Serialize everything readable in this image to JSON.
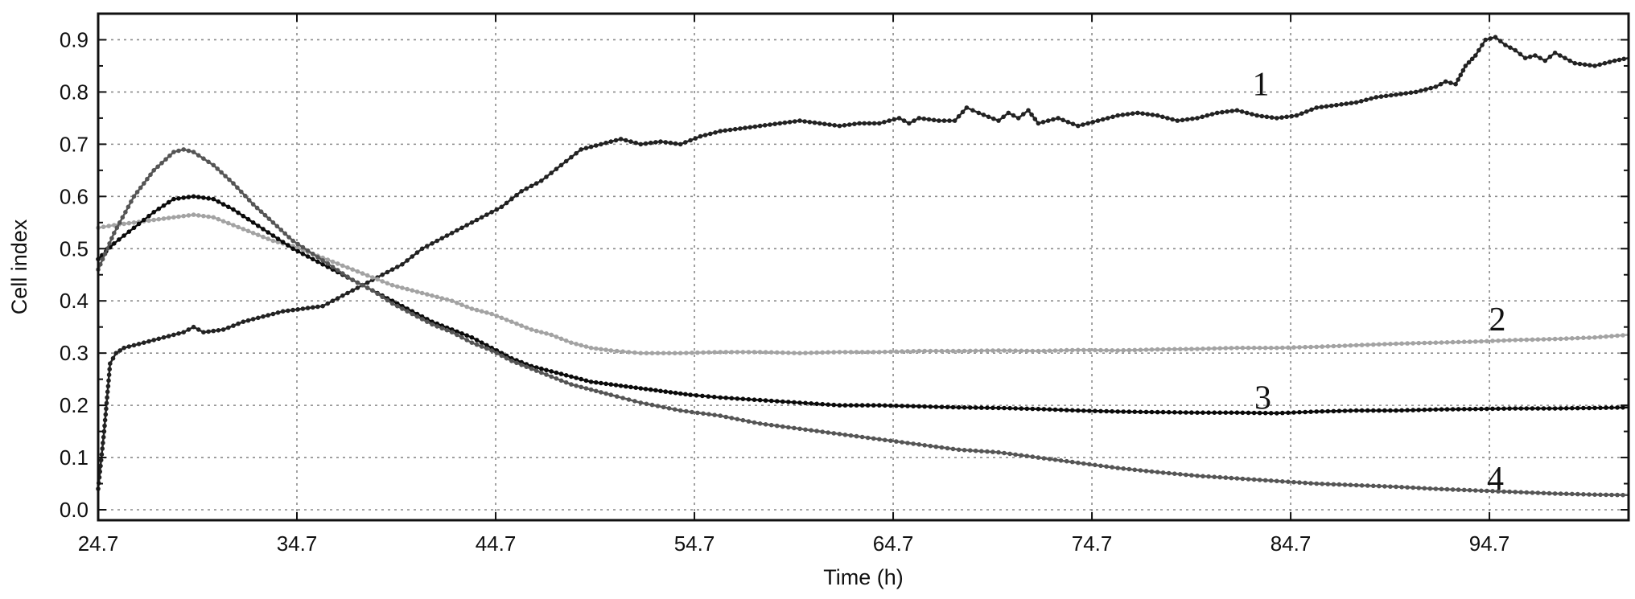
{
  "chart_data": {
    "type": "line",
    "title": "",
    "xlabel": "Time (h)",
    "ylabel": "Cell index",
    "xlim": [
      24.7,
      101.7
    ],
    "ylim": [
      -0.02,
      0.95
    ],
    "grid": true,
    "x_ticks": [
      "24.7",
      "34.7",
      "44.7",
      "54.7",
      "64.7",
      "74.7",
      "84.7",
      "94.7"
    ],
    "y_ticks": [
      "0.0",
      "0.1",
      "0.2",
      "0.3",
      "0.4",
      "0.5",
      "0.6",
      "0.7",
      "0.8",
      "0.9"
    ],
    "series_labels": [
      {
        "text": "1",
        "x": 83.2,
        "y": 0.815
      },
      {
        "text": "2",
        "x": 95.1,
        "y": 0.365
      },
      {
        "text": "3",
        "x": 83.3,
        "y": 0.215
      },
      {
        "text": "4",
        "x": 95.0,
        "y": 0.06
      }
    ],
    "series": [
      {
        "label": "1",
        "color": "#222222",
        "x": [
          24.7,
          25.0,
          25.3,
          25.6,
          26.0,
          27.0,
          28.0,
          29.0,
          29.5,
          30.0,
          31.0,
          32.0,
          33.0,
          34.0,
          35.0,
          36.0,
          37.0,
          38.0,
          39.0,
          40.0,
          41.0,
          42.0,
          43.0,
          44.0,
          45.0,
          46.0,
          47.0,
          48.0,
          49.0,
          50.0,
          51.0,
          52.0,
          53.0,
          54.0,
          55.0,
          56.0,
          57.0,
          58.0,
          59.0,
          60.0,
          61.0,
          62.0,
          63.0,
          64.0,
          65.0,
          65.5,
          66.0,
          67.0,
          67.8,
          68.4,
          69.0,
          70.0,
          70.5,
          71.0,
          71.5,
          72.0,
          73.0,
          74.0,
          75.0,
          76.0,
          77.0,
          78.0,
          79.0,
          80.0,
          81.0,
          82.0,
          83.0,
          84.0,
          85.0,
          86.0,
          87.0,
          88.0,
          89.0,
          90.0,
          91.0,
          92.0,
          92.5,
          93.0,
          93.5,
          94.0,
          94.5,
          95.0,
          95.5,
          96.0,
          96.5,
          97.0,
          97.5,
          98.0,
          99.0,
          100.0,
          101.0,
          101.7
        ],
        "y": [
          0.04,
          0.15,
          0.28,
          0.3,
          0.31,
          0.32,
          0.33,
          0.34,
          0.35,
          0.34,
          0.345,
          0.36,
          0.37,
          0.38,
          0.385,
          0.39,
          0.41,
          0.43,
          0.45,
          0.47,
          0.5,
          0.52,
          0.54,
          0.56,
          0.58,
          0.61,
          0.63,
          0.66,
          0.69,
          0.7,
          0.71,
          0.7,
          0.705,
          0.7,
          0.715,
          0.725,
          0.73,
          0.735,
          0.74,
          0.745,
          0.74,
          0.735,
          0.74,
          0.74,
          0.75,
          0.74,
          0.75,
          0.745,
          0.745,
          0.77,
          0.76,
          0.745,
          0.76,
          0.75,
          0.765,
          0.74,
          0.75,
          0.735,
          0.745,
          0.755,
          0.76,
          0.755,
          0.745,
          0.75,
          0.76,
          0.765,
          0.755,
          0.75,
          0.755,
          0.77,
          0.775,
          0.78,
          0.79,
          0.795,
          0.8,
          0.81,
          0.82,
          0.815,
          0.85,
          0.87,
          0.9,
          0.905,
          0.89,
          0.88,
          0.865,
          0.87,
          0.86,
          0.875,
          0.855,
          0.85,
          0.86,
          0.865
        ]
      },
      {
        "label": "2",
        "color": "#a3a3a3",
        "x": [
          24.7,
          25.5,
          26.5,
          27.5,
          28.5,
          29.5,
          30.5,
          31.5,
          32.5,
          33.5,
          34.5,
          35.5,
          36.5,
          37.5,
          38.5,
          39.5,
          40.5,
          41.5,
          42.5,
          43.5,
          44.5,
          45.5,
          46.5,
          47.5,
          48.5,
          49.5,
          50.5,
          52.0,
          54.0,
          56.0,
          58.0,
          60.0,
          62.0,
          64.0,
          66.0,
          68.0,
          70.0,
          72.0,
          74.0,
          76.0,
          78.0,
          80.0,
          82.0,
          84.0,
          86.0,
          88.0,
          90.0,
          92.0,
          94.0,
          96.0,
          98.0,
          100.0,
          101.7
        ],
        "y": [
          0.54,
          0.545,
          0.55,
          0.555,
          0.56,
          0.565,
          0.56,
          0.545,
          0.53,
          0.515,
          0.505,
          0.49,
          0.475,
          0.46,
          0.445,
          0.43,
          0.42,
          0.41,
          0.4,
          0.385,
          0.375,
          0.36,
          0.345,
          0.335,
          0.32,
          0.31,
          0.305,
          0.3,
          0.3,
          0.302,
          0.302,
          0.3,
          0.302,
          0.302,
          0.304,
          0.304,
          0.305,
          0.304,
          0.306,
          0.305,
          0.307,
          0.308,
          0.31,
          0.31,
          0.312,
          0.315,
          0.318,
          0.32,
          0.322,
          0.325,
          0.327,
          0.33,
          0.335
        ]
      },
      {
        "label": "3",
        "color": "#0a0a0a",
        "x": [
          24.7,
          25.5,
          26.5,
          27.5,
          28.5,
          29.5,
          30.5,
          31.5,
          32.5,
          33.5,
          34.5,
          35.5,
          36.5,
          37.5,
          38.5,
          39.5,
          40.5,
          41.5,
          42.5,
          43.5,
          44.5,
          45.5,
          46.5,
          47.5,
          48.5,
          49.5,
          50.5,
          51.5,
          52.5,
          53.5,
          54.5,
          56.0,
          58.0,
          60.0,
          62.0,
          64.0,
          66.0,
          68.0,
          70.0,
          72.0,
          74.0,
          76.0,
          78.0,
          80.0,
          82.0,
          84.0,
          86.0,
          88.0,
          90.0,
          92.0,
          94.0,
          96.0,
          98.0,
          100.0,
          101.7
        ],
        "y": [
          0.48,
          0.51,
          0.54,
          0.57,
          0.595,
          0.6,
          0.595,
          0.575,
          0.55,
          0.525,
          0.5,
          0.48,
          0.46,
          0.44,
          0.42,
          0.4,
          0.38,
          0.36,
          0.345,
          0.33,
          0.31,
          0.29,
          0.275,
          0.265,
          0.255,
          0.245,
          0.24,
          0.235,
          0.23,
          0.225,
          0.22,
          0.215,
          0.21,
          0.205,
          0.2,
          0.2,
          0.198,
          0.196,
          0.195,
          0.193,
          0.19,
          0.188,
          0.187,
          0.186,
          0.186,
          0.185,
          0.188,
          0.19,
          0.19,
          0.192,
          0.193,
          0.194,
          0.194,
          0.195,
          0.196
        ]
      },
      {
        "label": "4",
        "color": "#555555",
        "x": [
          24.7,
          25.5,
          26.5,
          27.5,
          28.5,
          29.0,
          29.5,
          30.5,
          31.5,
          32.5,
          33.5,
          34.5,
          35.5,
          36.5,
          37.5,
          38.5,
          39.5,
          40.5,
          41.5,
          42.5,
          43.5,
          44.5,
          45.5,
          46.5,
          47.5,
          48.5,
          49.5,
          50.5,
          52.0,
          54.0,
          56.0,
          58.0,
          60.0,
          62.0,
          64.0,
          66.0,
          68.0,
          70.0,
          72.0,
          74.0,
          76.0,
          78.0,
          80.0,
          82.0,
          84.0,
          86.0,
          88.0,
          90.0,
          92.0,
          94.0,
          96.0,
          98.0,
          100.0,
          101.7
        ],
        "y": [
          0.46,
          0.53,
          0.6,
          0.65,
          0.685,
          0.69,
          0.685,
          0.66,
          0.625,
          0.585,
          0.55,
          0.515,
          0.49,
          0.465,
          0.44,
          0.42,
          0.395,
          0.375,
          0.355,
          0.34,
          0.32,
          0.305,
          0.285,
          0.27,
          0.255,
          0.24,
          0.23,
          0.22,
          0.205,
          0.19,
          0.18,
          0.165,
          0.155,
          0.145,
          0.135,
          0.125,
          0.115,
          0.11,
          0.1,
          0.09,
          0.08,
          0.072,
          0.065,
          0.06,
          0.055,
          0.05,
          0.047,
          0.044,
          0.04,
          0.037,
          0.034,
          0.031,
          0.029,
          0.028
        ]
      }
    ]
  }
}
